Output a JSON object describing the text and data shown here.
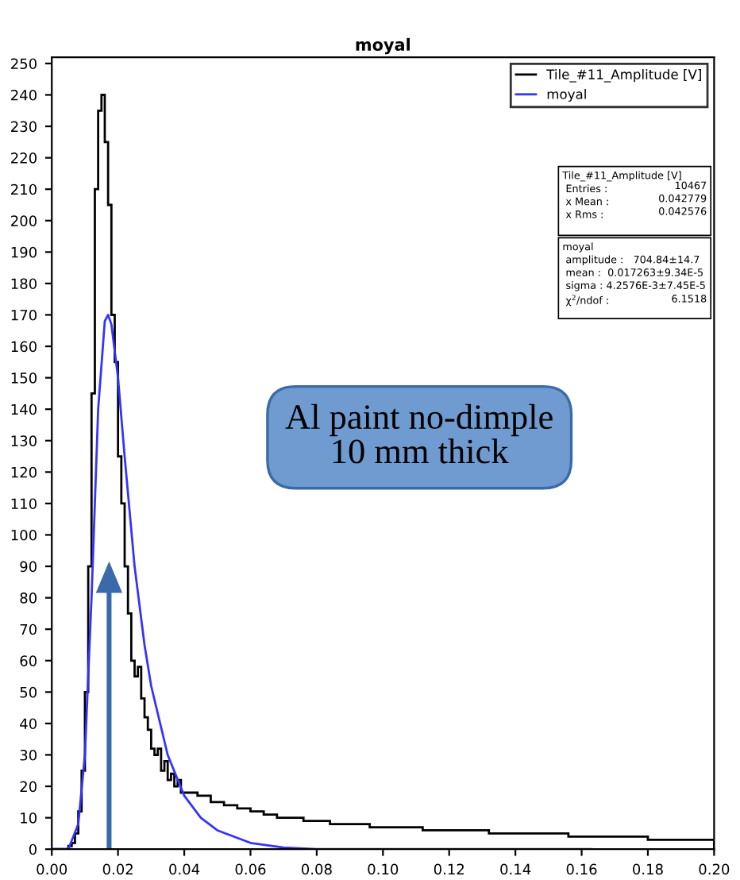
{
  "chart_data": {
    "type": "histogram",
    "title": "moyal",
    "bins": [
      0.0,
      0.001,
      0.002,
      0.003,
      0.004,
      0.005,
      0.006,
      0.007,
      0.008,
      0.009,
      0.01,
      0.011,
      0.012,
      0.013,
      0.014,
      0.015,
      0.016,
      0.017,
      0.018,
      0.019,
      0.02,
      0.021,
      0.022,
      0.023,
      0.024,
      0.025,
      0.026,
      0.027,
      0.028,
      0.029,
      0.03,
      0.031,
      0.032,
      0.033,
      0.034,
      0.035,
      0.036,
      0.037,
      0.038,
      0.039,
      0.04,
      0.044,
      0.048,
      0.052,
      0.056,
      0.06,
      0.064,
      0.068,
      0.072,
      0.076,
      0.08,
      0.084,
      0.088,
      0.092,
      0.096,
      0.1,
      0.104,
      0.108,
      0.112,
      0.116,
      0.12,
      0.124,
      0.128,
      0.132,
      0.136,
      0.14,
      0.144,
      0.148,
      0.152,
      0.156,
      0.16,
      0.164,
      0.168,
      0.172,
      0.176,
      0.18,
      0.184,
      0.188,
      0.192,
      0.196,
      0.2
    ],
    "series": [
      {
        "name": "Tile_#11_Amplitude [V]",
        "color": "#000000",
        "values": [
          0,
          0,
          0,
          0,
          0,
          1,
          2,
          5,
          12,
          25,
          50,
          90,
          145,
          210,
          235,
          240,
          225,
          205,
          170,
          155,
          125,
          110,
          90,
          75,
          60,
          55,
          58,
          48,
          42,
          38,
          32,
          30,
          32,
          25,
          28,
          22,
          24,
          20,
          22,
          18,
          18,
          17,
          15,
          14,
          13,
          12,
          11,
          10,
          10,
          9,
          9,
          8,
          8,
          8,
          7,
          7,
          7,
          7,
          6,
          6,
          6,
          6,
          6,
          5,
          5,
          5,
          5,
          5,
          5,
          4,
          4,
          4,
          4,
          4,
          4,
          3,
          3,
          3,
          3,
          3
        ]
      },
      {
        "name": "moyal",
        "type": "line",
        "color": "#3333ff",
        "x": [
          0.0,
          0.005,
          0.008,
          0.01,
          0.012,
          0.014,
          0.016,
          0.017,
          0.018,
          0.02,
          0.022,
          0.025,
          0.028,
          0.03,
          0.035,
          0.04,
          0.045,
          0.05,
          0.06,
          0.07,
          0.08,
          0.1,
          0.163
        ],
        "values": [
          0,
          0,
          8,
          30,
          80,
          140,
          168,
          170,
          167,
          150,
          125,
          90,
          65,
          52,
          30,
          17,
          10,
          6,
          2,
          0.5,
          0,
          0,
          0
        ]
      }
    ],
    "xlim": [
      0,
      0.2
    ],
    "ylim": [
      0,
      252
    ],
    "xticks": [
      {
        "value": 0,
        "label": "0.00"
      },
      {
        "value": 0.02,
        "label": "0.02"
      },
      {
        "value": 0.04,
        "label": "0.04"
      },
      {
        "value": 0.06,
        "label": "0.06"
      },
      {
        "value": 0.08,
        "label": "0.08"
      },
      {
        "value": 0.1,
        "label": "0.10"
      },
      {
        "value": 0.12,
        "label": "0.12"
      },
      {
        "value": 0.14,
        "label": "0.14"
      },
      {
        "value": 0.16,
        "label": "0.16"
      },
      {
        "value": 0.18,
        "label": "0.18"
      },
      {
        "value": 0.2,
        "label": "0.20"
      }
    ],
    "yticks": [
      0,
      10,
      20,
      30,
      40,
      50,
      60,
      70,
      80,
      90,
      100,
      110,
      120,
      130,
      140,
      150,
      160,
      170,
      180,
      190,
      200,
      210,
      220,
      230,
      240,
      250
    ],
    "legend": "top right",
    "grid": false,
    "annotations": [
      "Al paint no-dimple\n10 mm thick",
      "Tile_#11_Amplitude [V]\n Entries :\n x Mean :\n x Rms :",
      "10467\n0.042779\n0.042576",
      "moyal\n amplitude :   704.84±14.7\n mean :  0.017263±9.34E-5\n sigma : 4.2576E-3±7.45E-5\n χ$^{2}$/ndof :",
      "6.1518"
    ]
  }
}
